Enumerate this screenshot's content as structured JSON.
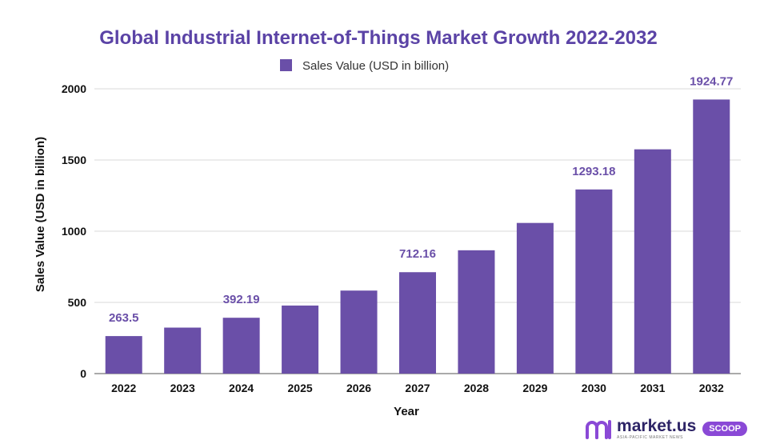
{
  "chart_data": {
    "type": "bar",
    "title": "Global Industrial Internet-of-Things Market Growth 2022-2032",
    "xlabel": "Year",
    "ylabel": "Sales Value (USD in billion)",
    "legend": {
      "label": "Sales Value (USD in billion)",
      "position": "top-center"
    },
    "categories": [
      "2022",
      "2023",
      "2024",
      "2025",
      "2026",
      "2027",
      "2028",
      "2029",
      "2030",
      "2031",
      "2032"
    ],
    "series": [
      {
        "name": "Sales Value (USD in billion)",
        "values": [
          263.5,
          323,
          392.19,
          478,
          583,
          712.16,
          866,
          1058,
          1293.18,
          1575,
          1924.77
        ]
      }
    ],
    "data_labels": [
      "263.5",
      "",
      "392.19",
      "",
      "",
      "712.16",
      "",
      "",
      "1293.18",
      "",
      "1924.77"
    ],
    "ylim": [
      0,
      2000
    ],
    "yticks": [
      0,
      500,
      1000,
      1500,
      2000
    ],
    "grid": true,
    "colors": {
      "bar": "#6a4fa8",
      "title": "#5b43a6",
      "label": "#6a4fa8"
    }
  },
  "brand": {
    "name": "market.us",
    "tagline": "ASIA-PACIFIC MARKET NEWS",
    "badge": "SCOOP",
    "icon": "market-us-logo-icon"
  }
}
